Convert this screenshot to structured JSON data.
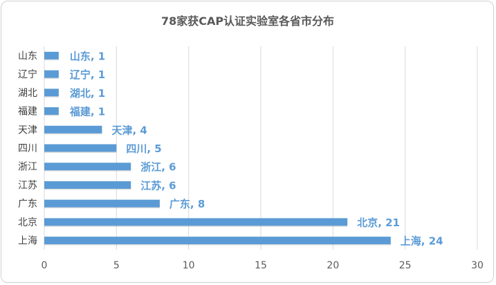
{
  "chart_data": {
    "type": "bar",
    "orientation": "horizontal",
    "title": "78家获CAP认证实验室各省市分布",
    "categories": [
      "山东",
      "辽宁",
      "湖北",
      "福建",
      "天津",
      "四川",
      "浙江",
      "江苏",
      "广东",
      "北京",
      "上海"
    ],
    "values": [
      1,
      1,
      1,
      1,
      4,
      5,
      6,
      6,
      8,
      21,
      24
    ],
    "data_labels": [
      "山东, 1",
      "辽宁, 1",
      "湖北, 1",
      "福建, 1",
      "天津, 4",
      "四川, 5",
      "浙江, 6",
      "江苏, 6",
      "广东, 8",
      "北京, 21",
      "上海, 24"
    ],
    "xlim": [
      0,
      30
    ],
    "xticks": [
      0,
      5,
      10,
      15,
      20,
      25,
      30
    ],
    "grid": true,
    "bar_color": "#5b9bd5",
    "legend": "none"
  }
}
